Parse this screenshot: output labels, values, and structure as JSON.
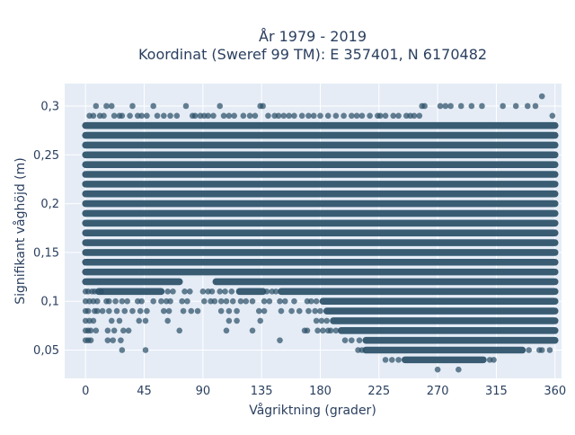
{
  "chart_data": {
    "type": "scatter",
    "title_line1": "År 1979 - 2019",
    "title_line2": "Koordinat (Sweref 99 TM): E 357401, N 6170482",
    "xlabel": "Vågriktning (grader)",
    "ylabel": "Signifikant våghöjd (m)",
    "xlim": [
      -16,
      365
    ],
    "ylim": [
      0.021,
      0.323
    ],
    "x_ticks": [
      0,
      45,
      90,
      135,
      180,
      225,
      270,
      315,
      360
    ],
    "x_tick_labels": [
      "0",
      "45",
      "90",
      "135",
      "180",
      "225",
      "270",
      "315",
      "360"
    ],
    "y_ticks": [
      0.05,
      0.1,
      0.15,
      0.2,
      0.25,
      0.3
    ],
    "y_tick_labels": [
      "0,05",
      "0,1",
      "0,15",
      "0,2",
      "0,25",
      "0,3"
    ],
    "marker_color": "#2c5168",
    "plot_background": "#e5ecf6",
    "grid": true,
    "series": [
      {
        "bands": [
          {
            "y": 0.28,
            "x_ranges": [
              [
                0,
                360
              ]
            ]
          },
          {
            "y": 0.27,
            "x_ranges": [
              [
                0,
                360
              ]
            ]
          },
          {
            "y": 0.26,
            "x_ranges": [
              [
                0,
                360
              ]
            ]
          },
          {
            "y": 0.25,
            "x_ranges": [
              [
                0,
                360
              ]
            ]
          },
          {
            "y": 0.24,
            "x_ranges": [
              [
                0,
                360
              ]
            ]
          },
          {
            "y": 0.23,
            "x_ranges": [
              [
                0,
                360
              ]
            ]
          },
          {
            "y": 0.22,
            "x_ranges": [
              [
                0,
                360
              ]
            ]
          },
          {
            "y": 0.21,
            "x_ranges": [
              [
                0,
                360
              ]
            ]
          },
          {
            "y": 0.2,
            "x_ranges": [
              [
                0,
                360
              ]
            ]
          },
          {
            "y": 0.19,
            "x_ranges": [
              [
                0,
                360
              ]
            ]
          },
          {
            "y": 0.18,
            "x_ranges": [
              [
                0,
                360
              ]
            ]
          },
          {
            "y": 0.17,
            "x_ranges": [
              [
                0,
                360
              ]
            ]
          },
          {
            "y": 0.16,
            "x_ranges": [
              [
                0,
                360
              ]
            ]
          },
          {
            "y": 0.15,
            "x_ranges": [
              [
                0,
                360
              ]
            ]
          },
          {
            "y": 0.14,
            "x_ranges": [
              [
                0,
                360
              ]
            ]
          },
          {
            "y": 0.13,
            "x_ranges": [
              [
                0,
                360
              ]
            ]
          },
          {
            "y": 0.12,
            "x_ranges": [
              [
                0,
                72
              ],
              [
                100,
                360
              ]
            ]
          },
          {
            "y": 0.11,
            "x_ranges": [
              [
                10,
                58
              ],
              [
                118,
                136
              ],
              [
                150,
                360
              ]
            ]
          },
          {
            "y": 0.1,
            "x_ranges": [
              [
                182,
                360
              ]
            ]
          },
          {
            "y": 0.09,
            "x_ranges": [
              [
                185,
                360
              ]
            ]
          },
          {
            "y": 0.08,
            "x_ranges": [
              [
                190,
                360
              ]
            ]
          },
          {
            "y": 0.07,
            "x_ranges": [
              [
                196,
                360
              ]
            ]
          },
          {
            "y": 0.06,
            "x_ranges": [
              [
                215,
                360
              ]
            ]
          },
          {
            "y": 0.05,
            "x_ranges": [
              [
                215,
                335
              ]
            ]
          },
          {
            "y": 0.04,
            "x_ranges": [
              [
                245,
                305
              ]
            ]
          }
        ],
        "points": [
          [
            3,
            0.29
          ],
          [
            6,
            0.29
          ],
          [
            8,
            0.3
          ],
          [
            11,
            0.29
          ],
          [
            14,
            0.29
          ],
          [
            16,
            0.3
          ],
          [
            20,
            0.3
          ],
          [
            22,
            0.29
          ],
          [
            26,
            0.29
          ],
          [
            28,
            0.29
          ],
          [
            34,
            0.29
          ],
          [
            36,
            0.3
          ],
          [
            40,
            0.29
          ],
          [
            43,
            0.29
          ],
          [
            47,
            0.29
          ],
          [
            52,
            0.3
          ],
          [
            55,
            0.29
          ],
          [
            60,
            0.29
          ],
          [
            65,
            0.29
          ],
          [
            70,
            0.29
          ],
          [
            77,
            0.3
          ],
          [
            82,
            0.29
          ],
          [
            84,
            0.29
          ],
          [
            88,
            0.29
          ],
          [
            91,
            0.29
          ],
          [
            94,
            0.29
          ],
          [
            98,
            0.29
          ],
          [
            103,
            0.3
          ],
          [
            106,
            0.29
          ],
          [
            110,
            0.29
          ],
          [
            114,
            0.29
          ],
          [
            121,
            0.29
          ],
          [
            126,
            0.29
          ],
          [
            130,
            0.29
          ],
          [
            134,
            0.3
          ],
          [
            136,
            0.3
          ],
          [
            140,
            0.29
          ],
          [
            145,
            0.29
          ],
          [
            148,
            0.29
          ],
          [
            152,
            0.29
          ],
          [
            156,
            0.29
          ],
          [
            160,
            0.29
          ],
          [
            166,
            0.29
          ],
          [
            171,
            0.29
          ],
          [
            175,
            0.29
          ],
          [
            180,
            0.29
          ],
          [
            186,
            0.29
          ],
          [
            192,
            0.29
          ],
          [
            198,
            0.29
          ],
          [
            204,
            0.29
          ],
          [
            208,
            0.29
          ],
          [
            212,
            0.29
          ],
          [
            218,
            0.29
          ],
          [
            224,
            0.29
          ],
          [
            226,
            0.29
          ],
          [
            230,
            0.29
          ],
          [
            236,
            0.29
          ],
          [
            240,
            0.29
          ],
          [
            246,
            0.29
          ],
          [
            249,
            0.29
          ],
          [
            252,
            0.29
          ],
          [
            256,
            0.29
          ],
          [
            258,
            0.3
          ],
          [
            260,
            0.3
          ],
          [
            272,
            0.3
          ],
          [
            276,
            0.3
          ],
          [
            280,
            0.3
          ],
          [
            288,
            0.3
          ],
          [
            296,
            0.3
          ],
          [
            304,
            0.3
          ],
          [
            320,
            0.3
          ],
          [
            330,
            0.3
          ],
          [
            339,
            0.3
          ],
          [
            345,
            0.3
          ],
          [
            350,
            0.31
          ],
          [
            358,
            0.29
          ],
          [
            0,
            0.11
          ],
          [
            2,
            0.11
          ],
          [
            5,
            0.11
          ],
          [
            7,
            0.11
          ],
          [
            12,
            0.11
          ],
          [
            63,
            0.11
          ],
          [
            67,
            0.11
          ],
          [
            76,
            0.11
          ],
          [
            80,
            0.11
          ],
          [
            90,
            0.11
          ],
          [
            94,
            0.11
          ],
          [
            97,
            0.11
          ],
          [
            103,
            0.11
          ],
          [
            107,
            0.11
          ],
          [
            112,
            0.11
          ],
          [
            139,
            0.11
          ],
          [
            143,
            0.11
          ],
          [
            146,
            0.11
          ],
          [
            0,
            0.1
          ],
          [
            3,
            0.1
          ],
          [
            6,
            0.1
          ],
          [
            9,
            0.1
          ],
          [
            16,
            0.1
          ],
          [
            18,
            0.1
          ],
          [
            23,
            0.1
          ],
          [
            28,
            0.1
          ],
          [
            32,
            0.1
          ],
          [
            40,
            0.1
          ],
          [
            43,
            0.1
          ],
          [
            52,
            0.1
          ],
          [
            58,
            0.1
          ],
          [
            62,
            0.1
          ],
          [
            65,
            0.1
          ],
          [
            74,
            0.1
          ],
          [
            78,
            0.1
          ],
          [
            91,
            0.1
          ],
          [
            96,
            0.1
          ],
          [
            99,
            0.1
          ],
          [
            104,
            0.1
          ],
          [
            108,
            0.1
          ],
          [
            113,
            0.1
          ],
          [
            119,
            0.1
          ],
          [
            123,
            0.1
          ],
          [
            128,
            0.1
          ],
          [
            137,
            0.1
          ],
          [
            141,
            0.1
          ],
          [
            149,
            0.1
          ],
          [
            153,
            0.1
          ],
          [
            160,
            0.1
          ],
          [
            170,
            0.1
          ],
          [
            173,
            0.1
          ],
          [
            177,
            0.1
          ],
          [
            0,
            0.09
          ],
          [
            2,
            0.09
          ],
          [
            7,
            0.09
          ],
          [
            9,
            0.09
          ],
          [
            13,
            0.09
          ],
          [
            18,
            0.09
          ],
          [
            24,
            0.09
          ],
          [
            30,
            0.09
          ],
          [
            36,
            0.09
          ],
          [
            42,
            0.09
          ],
          [
            47,
            0.09
          ],
          [
            60,
            0.09
          ],
          [
            64,
            0.09
          ],
          [
            75,
            0.09
          ],
          [
            81,
            0.09
          ],
          [
            86,
            0.09
          ],
          [
            104,
            0.09
          ],
          [
            110,
            0.09
          ],
          [
            116,
            0.09
          ],
          [
            133,
            0.09
          ],
          [
            137,
            0.09
          ],
          [
            150,
            0.09
          ],
          [
            158,
            0.09
          ],
          [
            164,
            0.09
          ],
          [
            171,
            0.09
          ],
          [
            176,
            0.09
          ],
          [
            180,
            0.09
          ],
          [
            0,
            0.08
          ],
          [
            3,
            0.08
          ],
          [
            6,
            0.08
          ],
          [
            20,
            0.08
          ],
          [
            26,
            0.08
          ],
          [
            41,
            0.08
          ],
          [
            46,
            0.08
          ],
          [
            63,
            0.08
          ],
          [
            110,
            0.08
          ],
          [
            116,
            0.08
          ],
          [
            134,
            0.08
          ],
          [
            177,
            0.08
          ],
          [
            181,
            0.08
          ],
          [
            185,
            0.08
          ],
          [
            0,
            0.07
          ],
          [
            2,
            0.07
          ],
          [
            4,
            0.07
          ],
          [
            8,
            0.07
          ],
          [
            17,
            0.07
          ],
          [
            22,
            0.07
          ],
          [
            29,
            0.07
          ],
          [
            33,
            0.07
          ],
          [
            72,
            0.07
          ],
          [
            108,
            0.07
          ],
          [
            128,
            0.07
          ],
          [
            168,
            0.07
          ],
          [
            170,
            0.07
          ],
          [
            178,
            0.07
          ],
          [
            182,
            0.07
          ],
          [
            186,
            0.07
          ],
          [
            188,
            0.07
          ],
          [
            192,
            0.07
          ],
          [
            0,
            0.06
          ],
          [
            2,
            0.06
          ],
          [
            4,
            0.06
          ],
          [
            17,
            0.06
          ],
          [
            21,
            0.06
          ],
          [
            27,
            0.06
          ],
          [
            149,
            0.06
          ],
          [
            199,
            0.06
          ],
          [
            204,
            0.06
          ],
          [
            210,
            0.06
          ],
          [
            28,
            0.05
          ],
          [
            46,
            0.05
          ],
          [
            209,
            0.05
          ],
          [
            212,
            0.05
          ],
          [
            340,
            0.05
          ],
          [
            348,
            0.05
          ],
          [
            350,
            0.05
          ],
          [
            356,
            0.05
          ],
          [
            230,
            0.04
          ],
          [
            235,
            0.04
          ],
          [
            240,
            0.04
          ],
          [
            310,
            0.04
          ],
          [
            313,
            0.04
          ],
          [
            270,
            0.03
          ],
          [
            286,
            0.03
          ]
        ]
      }
    ]
  }
}
